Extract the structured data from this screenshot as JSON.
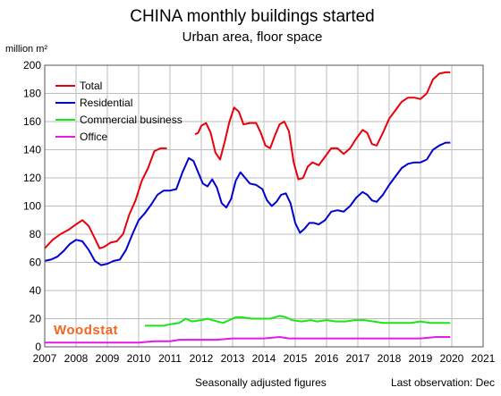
{
  "header": {
    "title": "CHINA  monthly buildings started",
    "subtitle": "Urban area, floor space",
    "unit": "million m²"
  },
  "footer": {
    "note_left": "Seasonally adjusted figures",
    "note_right": "Last observation: Dec"
  },
  "brand": {
    "text": "Woodstat",
    "color": "#f26522"
  },
  "chart_data": {
    "type": "line",
    "title": "CHINA  monthly buildings started",
    "subtitle": "Urban area, floor space",
    "ylabel": "million m²",
    "xlim": [
      2007,
      2021
    ],
    "ylim": [
      0,
      200
    ],
    "x_ticks": [
      "2007",
      "2008",
      "2009",
      "2010",
      "2011",
      "2012",
      "2013",
      "2014",
      "2015",
      "2016",
      "2017",
      "2018",
      "2019",
      "2020",
      "2021"
    ],
    "y_ticks": [
      "0",
      "20",
      "40",
      "60",
      "80",
      "100",
      "120",
      "140",
      "160",
      "180",
      "200"
    ],
    "grid": true,
    "legend_position": "top-left",
    "series": [
      {
        "name": "Total",
        "color": "#e8000b",
        "segments": [
          [
            [
              2007.0,
              70
            ],
            [
              2007.25,
              76
            ],
            [
              2007.5,
              80
            ],
            [
              2007.75,
              83
            ],
            [
              2008.0,
              87
            ],
            [
              2008.2,
              90
            ],
            [
              2008.4,
              86
            ],
            [
              2008.6,
              77
            ],
            [
              2008.75,
              70
            ],
            [
              2008.9,
              71
            ],
            [
              2009.1,
              74
            ],
            [
              2009.3,
              75
            ],
            [
              2009.5,
              80
            ],
            [
              2009.7,
              94
            ],
            [
              2009.9,
              104
            ],
            [
              2010.1,
              118
            ],
            [
              2010.3,
              127
            ],
            [
              2010.5,
              139
            ],
            [
              2010.7,
              141
            ],
            [
              2010.9,
              141
            ]
          ],
          [
            [
              2011.8,
              151
            ],
            [
              2011.9,
              152
            ],
            [
              2012.0,
              157
            ],
            [
              2012.15,
              159
            ],
            [
              2012.3,
              152
            ],
            [
              2012.45,
              138
            ],
            [
              2012.6,
              133
            ],
            [
              2012.75,
              146
            ],
            [
              2012.9,
              160
            ],
            [
              2013.05,
              170
            ],
            [
              2013.2,
              167
            ],
            [
              2013.35,
              158
            ],
            [
              2013.55,
              159
            ],
            [
              2013.75,
              159
            ],
            [
              2013.9,
              152
            ],
            [
              2014.05,
              143
            ],
            [
              2014.2,
              141
            ],
            [
              2014.35,
              150
            ],
            [
              2014.5,
              158
            ],
            [
              2014.65,
              160
            ],
            [
              2014.8,
              153
            ],
            [
              2014.95,
              131
            ],
            [
              2015.1,
              119
            ],
            [
              2015.25,
              120
            ],
            [
              2015.4,
              128
            ],
            [
              2015.55,
              131
            ],
            [
              2015.75,
              129
            ],
            [
              2015.95,
              135
            ],
            [
              2016.15,
              141
            ],
            [
              2016.35,
              141
            ],
            [
              2016.55,
              137
            ],
            [
              2016.75,
              141
            ],
            [
              2016.95,
              148
            ],
            [
              2017.15,
              154
            ],
            [
              2017.3,
              152
            ],
            [
              2017.45,
              144
            ],
            [
              2017.6,
              143
            ],
            [
              2017.8,
              152
            ],
            [
              2018.0,
              162
            ],
            [
              2018.2,
              168
            ],
            [
              2018.4,
              174
            ],
            [
              2018.6,
              177
            ],
            [
              2018.8,
              177
            ],
            [
              2019.0,
              176
            ],
            [
              2019.2,
              180
            ],
            [
              2019.4,
              190
            ],
            [
              2019.6,
              194
            ],
            [
              2019.8,
              195
            ],
            [
              2019.95,
              195
            ]
          ]
        ]
      },
      {
        "name": "Residential",
        "color": "#0000d0",
        "segments": [
          [
            [
              2007.0,
              61
            ],
            [
              2007.2,
              62
            ],
            [
              2007.4,
              64
            ],
            [
              2007.6,
              68
            ],
            [
              2007.8,
              73
            ],
            [
              2008.0,
              76
            ],
            [
              2008.2,
              75
            ],
            [
              2008.4,
              69
            ],
            [
              2008.6,
              61
            ],
            [
              2008.8,
              58
            ],
            [
              2009.0,
              59
            ],
            [
              2009.2,
              61
            ],
            [
              2009.4,
              62
            ],
            [
              2009.6,
              69
            ],
            [
              2009.8,
              80
            ],
            [
              2010.0,
              90
            ],
            [
              2010.2,
              95
            ],
            [
              2010.4,
              101
            ],
            [
              2010.6,
              108
            ],
            [
              2010.8,
              111
            ],
            [
              2011.0,
              111
            ],
            [
              2011.2,
              112
            ],
            [
              2011.4,
              124
            ],
            [
              2011.6,
              134
            ],
            [
              2011.75,
              132
            ],
            [
              2011.9,
              124
            ],
            [
              2012.05,
              116
            ],
            [
              2012.2,
              114
            ],
            [
              2012.35,
              119
            ],
            [
              2012.5,
              113
            ],
            [
              2012.65,
              102
            ],
            [
              2012.8,
              99
            ],
            [
              2012.95,
              105
            ],
            [
              2013.1,
              118
            ],
            [
              2013.25,
              124
            ],
            [
              2013.4,
              120
            ],
            [
              2013.55,
              116
            ],
            [
              2013.75,
              115
            ],
            [
              2013.95,
              112
            ],
            [
              2014.1,
              104
            ],
            [
              2014.25,
              100
            ],
            [
              2014.4,
              103
            ],
            [
              2014.55,
              108
            ],
            [
              2014.7,
              109
            ],
            [
              2014.85,
              102
            ],
            [
              2015.0,
              88
            ],
            [
              2015.15,
              81
            ],
            [
              2015.3,
              84
            ],
            [
              2015.45,
              88
            ],
            [
              2015.6,
              88
            ],
            [
              2015.75,
              87
            ],
            [
              2015.95,
              90
            ],
            [
              2016.15,
              96
            ],
            [
              2016.35,
              97
            ],
            [
              2016.55,
              96
            ],
            [
              2016.75,
              100
            ],
            [
              2016.95,
              106
            ],
            [
              2017.15,
              110
            ],
            [
              2017.3,
              108
            ],
            [
              2017.45,
              104
            ],
            [
              2017.6,
              103
            ],
            [
              2017.8,
              108
            ],
            [
              2018.0,
              115
            ],
            [
              2018.2,
              121
            ],
            [
              2018.4,
              127
            ],
            [
              2018.6,
              130
            ],
            [
              2018.8,
              131
            ],
            [
              2019.0,
              131
            ],
            [
              2019.2,
              133
            ],
            [
              2019.4,
              140
            ],
            [
              2019.6,
              143
            ],
            [
              2019.8,
              145
            ],
            [
              2019.95,
              145
            ]
          ]
        ]
      },
      {
        "name": "Commercial business",
        "color": "#19e619",
        "segments": [
          [
            [
              2010.2,
              15
            ],
            [
              2010.5,
              15
            ],
            [
              2010.8,
              15
            ],
            [
              2011.0,
              16
            ],
            [
              2011.3,
              17
            ],
            [
              2011.5,
              20
            ],
            [
              2011.7,
              18
            ],
            [
              2012.0,
              19
            ],
            [
              2012.2,
              20
            ],
            [
              2012.5,
              18
            ],
            [
              2012.7,
              17
            ],
            [
              2012.9,
              19
            ],
            [
              2013.1,
              21
            ],
            [
              2013.3,
              21
            ],
            [
              2013.6,
              20
            ],
            [
              2013.9,
              20
            ],
            [
              2014.2,
              20
            ],
            [
              2014.5,
              22
            ],
            [
              2014.7,
              21
            ],
            [
              2014.9,
              19
            ],
            [
              2015.2,
              18
            ],
            [
              2015.5,
              19
            ],
            [
              2015.7,
              18
            ],
            [
              2016.0,
              19
            ],
            [
              2016.3,
              18
            ],
            [
              2016.6,
              18
            ],
            [
              2016.9,
              19
            ],
            [
              2017.2,
              19
            ],
            [
              2017.5,
              18
            ],
            [
              2017.8,
              17
            ],
            [
              2018.1,
              17
            ],
            [
              2018.4,
              17
            ],
            [
              2018.7,
              17
            ],
            [
              2019.0,
              18
            ],
            [
              2019.3,
              17
            ],
            [
              2019.6,
              17
            ],
            [
              2019.95,
              17
            ]
          ]
        ]
      },
      {
        "name": "Office",
        "color": "#e619e6",
        "segments": [
          [
            [
              2007.0,
              3
            ],
            [
              2007.5,
              3
            ],
            [
              2008.0,
              3
            ],
            [
              2008.5,
              3
            ],
            [
              2009.0,
              3
            ],
            [
              2009.5,
              3
            ],
            [
              2010.0,
              3
            ],
            [
              2010.5,
              4
            ],
            [
              2011.0,
              4
            ],
            [
              2011.3,
              5
            ],
            [
              2011.6,
              5
            ],
            [
              2012.0,
              5
            ],
            [
              2012.5,
              5
            ],
            [
              2013.0,
              6
            ],
            [
              2013.5,
              6
            ],
            [
              2014.0,
              6
            ],
            [
              2014.5,
              7
            ],
            [
              2014.8,
              6
            ],
            [
              2015.0,
              6
            ],
            [
              2015.5,
              6
            ],
            [
              2016.0,
              6
            ],
            [
              2016.5,
              6
            ],
            [
              2017.0,
              6
            ],
            [
              2017.5,
              6
            ],
            [
              2018.0,
              6
            ],
            [
              2018.5,
              6
            ],
            [
              2019.0,
              6
            ],
            [
              2019.5,
              7
            ],
            [
              2019.95,
              7
            ]
          ]
        ]
      }
    ]
  }
}
